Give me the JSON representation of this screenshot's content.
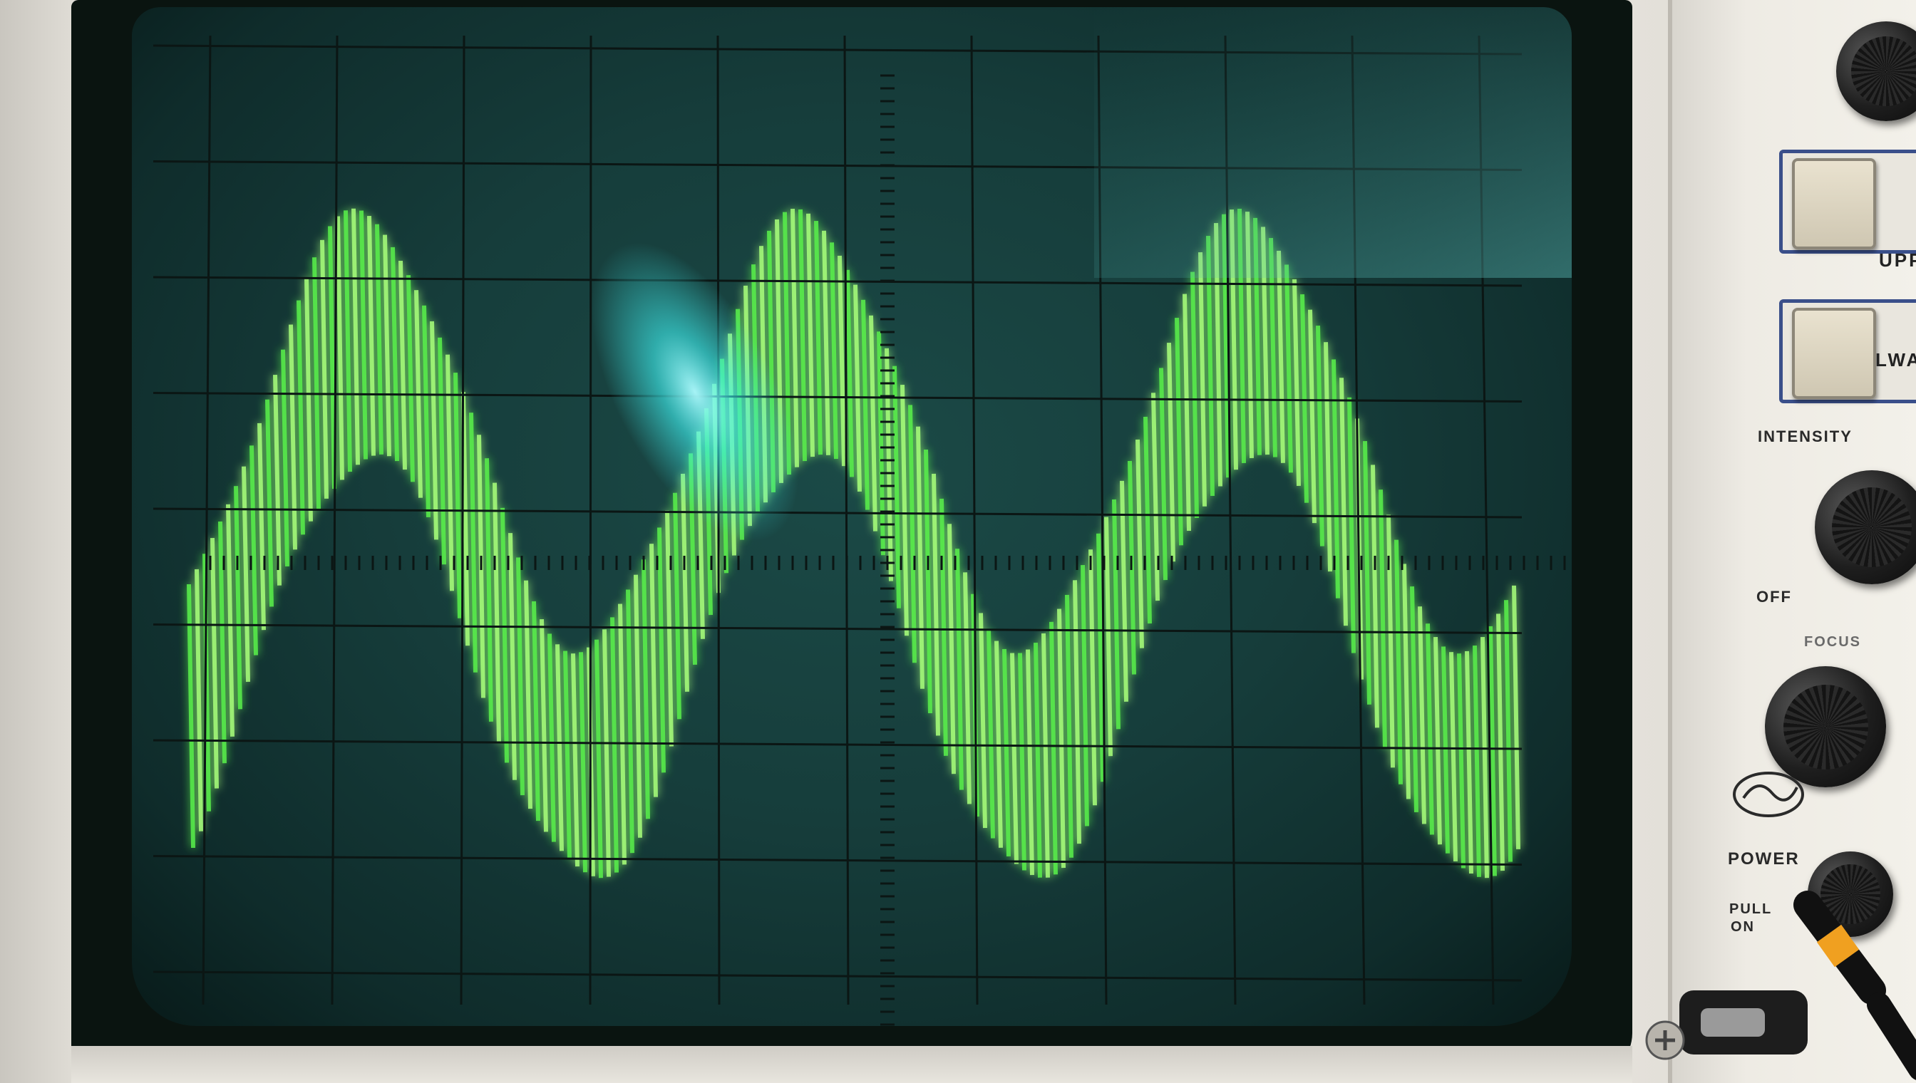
{
  "oscilloscope": {
    "panel_labels": {
      "upper_button": "UPPR",
      "lower_button": "LWA",
      "intensity": "INTENSITY",
      "off": "OFF",
      "focus": "FOCUS",
      "power": "POWER",
      "pull_on_line1": "PULL",
      "pull_on_line2": "ON"
    },
    "colors": {
      "trace": "#58f04a",
      "trace_bright": "#a8ff7a",
      "screen": "#163d3b",
      "grid": "#0b1614",
      "glare": "#3ff2f2",
      "knob": "#1a1a1a"
    },
    "icons": [
      "logo-badge-icon",
      "screw-icon",
      "probe-connector-icon"
    ]
  }
}
